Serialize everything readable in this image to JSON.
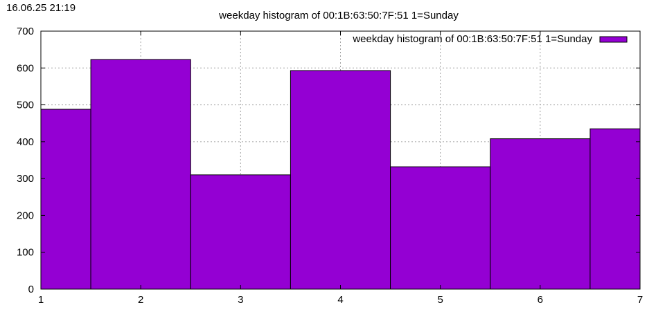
{
  "timestamp": "16.06.25 21:19",
  "chart_data": {
    "type": "bar",
    "title": "weekday histogram of 00:1B:63:50:7F:51 1=Sunday",
    "xlabel": "",
    "ylabel": "",
    "x": [
      1,
      2,
      3,
      4,
      5,
      6,
      7
    ],
    "values": [
      488,
      623,
      310,
      593,
      332,
      408,
      435
    ],
    "xlim": [
      1,
      7
    ],
    "ylim": [
      0,
      700
    ],
    "xticks": [
      1,
      2,
      3,
      4,
      5,
      6,
      7
    ],
    "yticks": [
      0,
      100,
      200,
      300,
      400,
      500,
      600,
      700
    ],
    "grid": true,
    "legend": {
      "label": "weekday histogram of 00:1B:63:50:7F:51 1=Sunday",
      "position": "top-right"
    },
    "colors": {
      "bar": "#9400d3",
      "edge": "#000000",
      "grid": "#a0a0a0"
    }
  }
}
